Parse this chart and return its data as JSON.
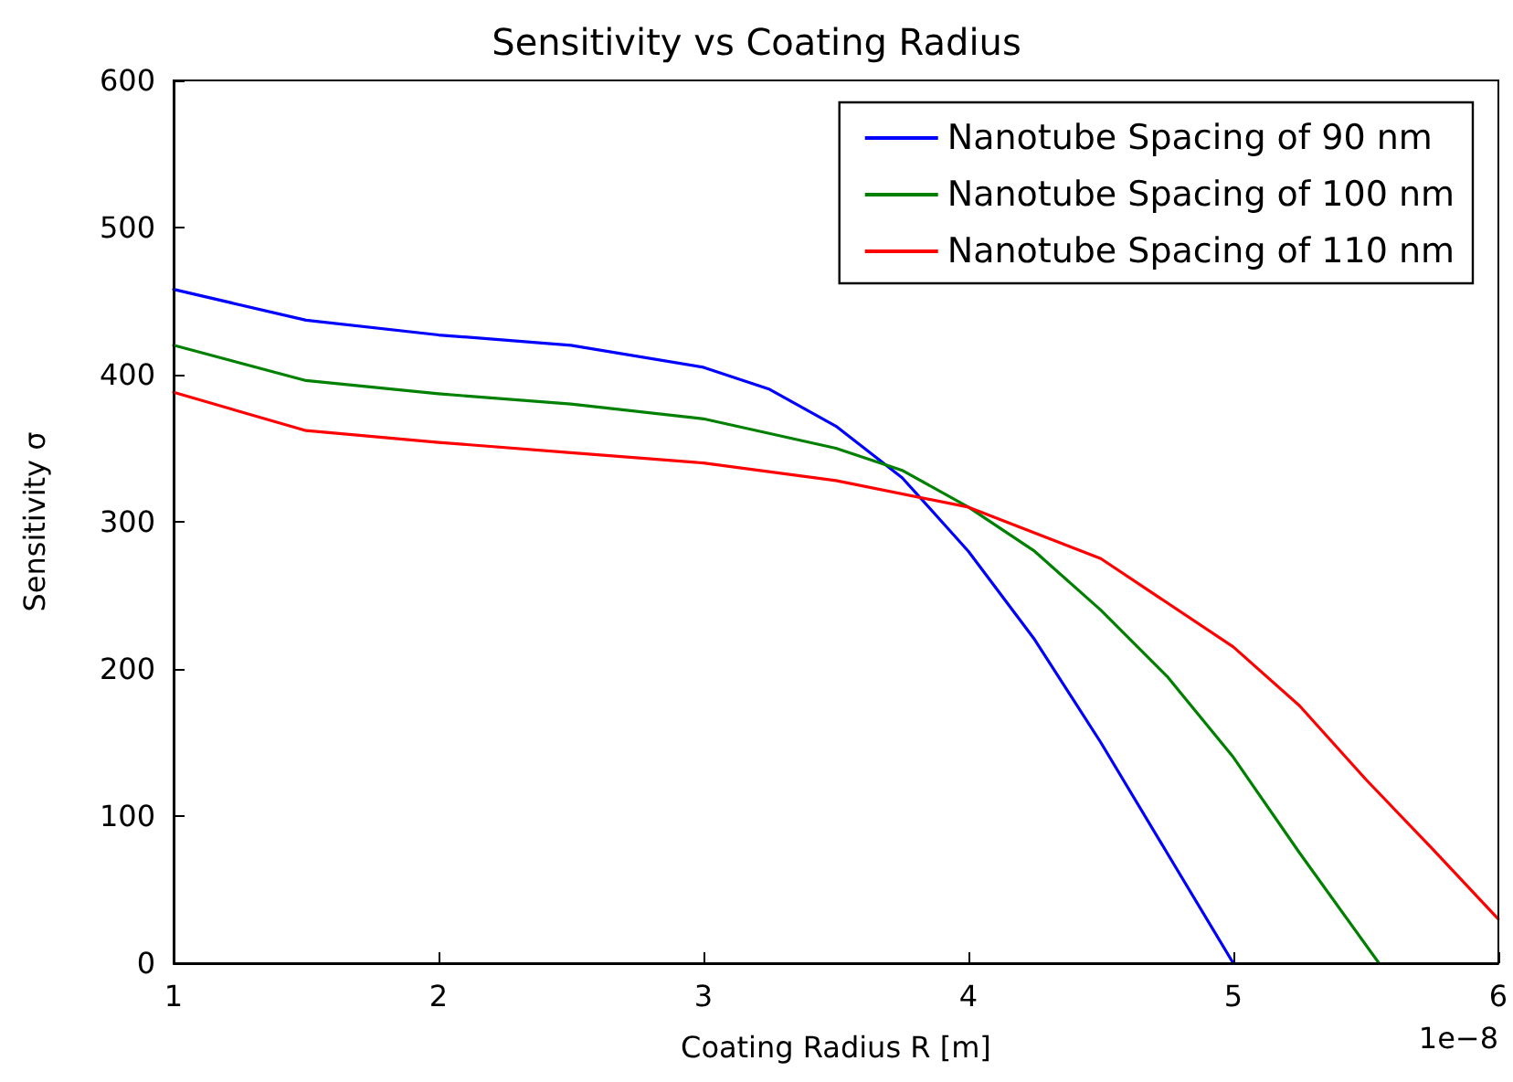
{
  "chart_data": {
    "type": "line",
    "title": "Sensitivity vs Coating Radius",
    "xlabel": "Coating Radius R [m]",
    "ylabel": "Sensitivity σ",
    "annotations": [
      "1e−8"
    ],
    "xlim": [
      1,
      6
    ],
    "xticks": [
      1,
      2,
      3,
      4,
      5,
      6
    ],
    "ylim": [
      0,
      600
    ],
    "yticks": [
      0,
      100,
      200,
      300,
      400,
      500,
      600
    ],
    "grid": false,
    "legend": "top right",
    "marker": "none",
    "line_style": "solid",
    "series": [
      {
        "name": "Nanotube Spacing of 90 nm",
        "color": "#0000ff",
        "x": [
          1,
          1.5,
          2,
          2.5,
          3,
          3.25,
          3.5,
          3.75,
          4,
          4.25,
          4.5,
          4.75,
          5
        ],
        "values": [
          458,
          437,
          427,
          420,
          405,
          390,
          365,
          330,
          280,
          220,
          150,
          75,
          0
        ]
      },
      {
        "name": "Nanotube Spacing of 100 nm",
        "color": "#008000",
        "x": [
          1,
          1.5,
          2,
          2.5,
          3,
          3.5,
          3.75,
          4,
          4.25,
          4.5,
          4.75,
          5,
          5.25,
          5.55
        ],
        "values": [
          420,
          396,
          387,
          380,
          370,
          350,
          335,
          310,
          280,
          240,
          195,
          140,
          75,
          0
        ]
      },
      {
        "name": "Nanotube Spacing of 110 nm",
        "color": "#ff0000",
        "x": [
          1,
          1.5,
          2,
          2.5,
          3,
          3.5,
          4,
          4.5,
          5,
          5.25,
          5.5,
          5.75,
          6
        ],
        "values": [
          388,
          362,
          354,
          347,
          340,
          328,
          310,
          275,
          215,
          175,
          125,
          78,
          30
        ]
      }
    ]
  }
}
